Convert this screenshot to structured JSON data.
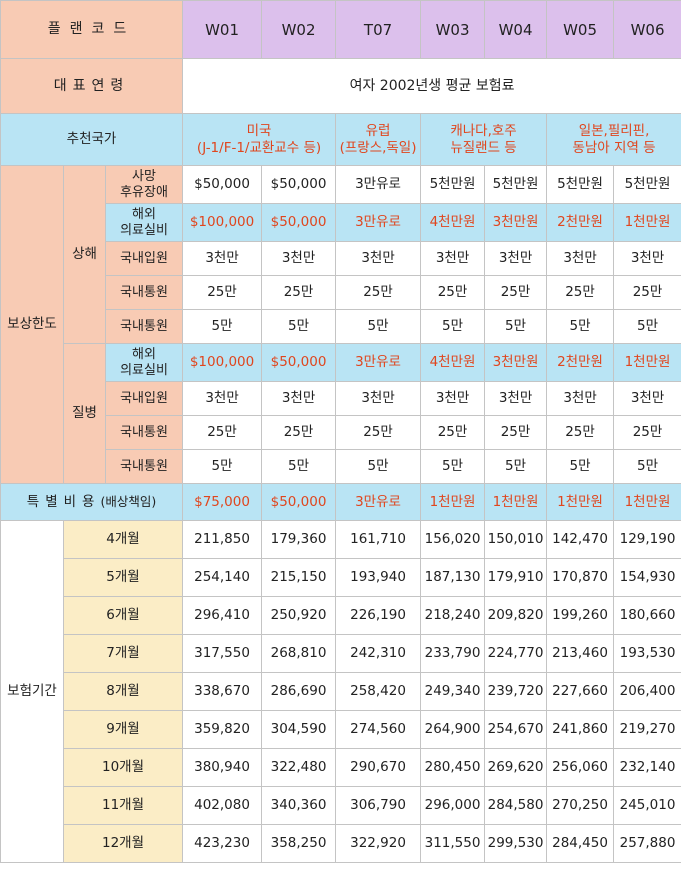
{
  "header": {
    "plan_code_label": "플랜코드",
    "plans": [
      "W01",
      "W02",
      "T07",
      "W03",
      "W04",
      "W05",
      "W06"
    ]
  },
  "representative_age": {
    "label": "대표연령",
    "value": "여자 2002년생 평균 보험료"
  },
  "recommended": {
    "label": "추천국가",
    "groups": [
      {
        "line1": "미국",
        "line2": "(J-1/F-1/교환교수 등)"
      },
      {
        "line1": "유럽",
        "line2": "(프랑스,독일)"
      },
      {
        "line1": "캐나다,호주",
        "line2": "뉴질랜드 등"
      },
      {
        "line1": "일본,필리핀,",
        "line2": "동남아 지역 등"
      }
    ]
  },
  "coverage": {
    "label": "보상한도",
    "injury": {
      "label": "상해",
      "rows": [
        {
          "line1": "사망",
          "line2": "후유장애",
          "highlight": false,
          "values": [
            "$50,000",
            "$50,000",
            "3만유로",
            "5천만원",
            "5천만원",
            "5천만원",
            "5천만원"
          ]
        },
        {
          "line1": "해외",
          "line2": "의료실비",
          "highlight": true,
          "values": [
            "$100,000",
            "$50,000",
            "3만유로",
            "4천만원",
            "3천만원",
            "2천만원",
            "1천만원"
          ]
        },
        {
          "line1": "국내입원",
          "line2": "",
          "highlight": false,
          "values": [
            "3천만",
            "3천만",
            "3천만",
            "3천만",
            "3천만",
            "3천만",
            "3천만"
          ]
        },
        {
          "line1": "국내통원",
          "line2": "",
          "highlight": false,
          "values": [
            "25만",
            "25만",
            "25만",
            "25만",
            "25만",
            "25만",
            "25만"
          ]
        },
        {
          "line1": "국내통원",
          "line2": "",
          "highlight": false,
          "values": [
            "5만",
            "5만",
            "5만",
            "5만",
            "5만",
            "5만",
            "5만"
          ]
        }
      ]
    },
    "disease": {
      "label": "질병",
      "rows": [
        {
          "line1": "해외",
          "line2": "의료실비",
          "highlight": true,
          "values": [
            "$100,000",
            "$50,000",
            "3만유로",
            "4천만원",
            "3천만원",
            "2천만원",
            "1천만원"
          ]
        },
        {
          "line1": "국내입원",
          "line2": "",
          "highlight": false,
          "values": [
            "3천만",
            "3천만",
            "3천만",
            "3천만",
            "3천만",
            "3천만",
            "3천만"
          ]
        },
        {
          "line1": "국내통원",
          "line2": "",
          "highlight": false,
          "values": [
            "25만",
            "25만",
            "25만",
            "25만",
            "25만",
            "25만",
            "25만"
          ]
        },
        {
          "line1": "국내통원",
          "line2": "",
          "highlight": false,
          "values": [
            "5만",
            "5만",
            "5만",
            "5만",
            "5만",
            "5만",
            "5만"
          ]
        }
      ]
    }
  },
  "special_expense": {
    "label": "특별비용",
    "sub_label": "(배상책임)",
    "values": [
      "$75,000",
      "$50,000",
      "3만유로",
      "1천만원",
      "1천만원",
      "1천만원",
      "1천만원"
    ]
  },
  "period": {
    "label": "보험기간",
    "rows": [
      {
        "month": "4개월",
        "values": [
          "211,850",
          "179,360",
          "161,710",
          "156,020",
          "150,010",
          "142,470",
          "129,190"
        ]
      },
      {
        "month": "5개월",
        "values": [
          "254,140",
          "215,150",
          "193,940",
          "187,130",
          "179,910",
          "170,870",
          "154,930"
        ]
      },
      {
        "month": "6개월",
        "values": [
          "296,410",
          "250,920",
          "226,190",
          "218,240",
          "209,820",
          "199,260",
          "180,660"
        ]
      },
      {
        "month": "7개월",
        "values": [
          "317,550",
          "268,810",
          "242,310",
          "233,790",
          "224,770",
          "213,460",
          "193,530"
        ]
      },
      {
        "month": "8개월",
        "values": [
          "338,670",
          "286,690",
          "258,420",
          "249,340",
          "239,720",
          "227,660",
          "206,400"
        ]
      },
      {
        "month": "9개월",
        "values": [
          "359,820",
          "304,590",
          "274,560",
          "264,900",
          "254,670",
          "241,860",
          "219,270"
        ]
      },
      {
        "month": "10개월",
        "values": [
          "380,940",
          "322,480",
          "290,670",
          "280,450",
          "269,620",
          "256,060",
          "232,140"
        ]
      },
      {
        "month": "11개월",
        "values": [
          "402,080",
          "340,360",
          "306,790",
          "296,000",
          "284,580",
          "270,250",
          "245,010"
        ]
      },
      {
        "month": "12개월",
        "values": [
          "423,230",
          "358,250",
          "322,920",
          "311,550",
          "299,530",
          "284,450",
          "257,880"
        ]
      }
    ]
  },
  "colors": {
    "lavender": "#dcc0ec",
    "peach": "#f8cbb4",
    "sky": "#b9e4f4",
    "cream": "#fbedc6",
    "accent_red": "#e0461e"
  }
}
